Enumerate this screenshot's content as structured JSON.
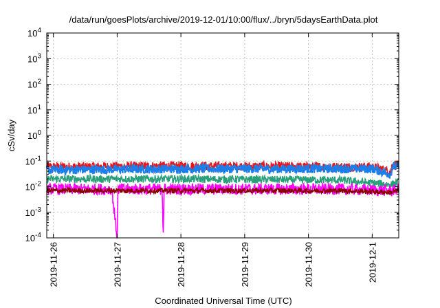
{
  "chart_data": {
    "type": "line",
    "title": "/data/run/goesPlots/archive/2019-12-01/10:00/flux/../bryn/5daysEarthData.plot",
    "xlabel": "Coordinated Universal Time (UTC)",
    "ylabel": "cSv/day",
    "y_scale": "log",
    "ylim": [
      0.0001,
      10000
    ],
    "xlim": [
      "2019-11-25 21:30",
      "2019-12-01 10:00"
    ],
    "y_ticks": [
      {
        "value": 0.0001,
        "base": "10",
        "exp": "-4"
      },
      {
        "value": 0.001,
        "base": "10",
        "exp": "-3"
      },
      {
        "value": 0.01,
        "base": "10",
        "exp": "-2"
      },
      {
        "value": 0.1,
        "base": "10",
        "exp": "-1"
      },
      {
        "value": 1,
        "base": "10",
        "exp": "0"
      },
      {
        "value": 10,
        "base": "10",
        "exp": "1"
      },
      {
        "value": 100,
        "base": "10",
        "exp": "2"
      },
      {
        "value": 1000,
        "base": "10",
        "exp": "3"
      },
      {
        "value": 10000,
        "base": "10",
        "exp": "4"
      }
    ],
    "x_ticks": [
      "2019-11-26",
      "2019-11-27",
      "2019-11-28",
      "2019-11-29",
      "2019-11-30",
      "2019-12-1"
    ],
    "grid": true,
    "legend": "none",
    "series": [
      {
        "color": "#e8161b",
        "typical": 0.06,
        "spread": 0.0,
        "points": [
          [
            "2019-11-25 21:30",
            0.06
          ],
          [
            "2019-11-28 00:00",
            0.065
          ],
          [
            "2019-11-30 12:00",
            0.06
          ],
          [
            "2019-12-01 00:00",
            0.06
          ],
          [
            "2019-12-01 07:00",
            0.04
          ],
          [
            "2019-12-01 07:30",
            0.07
          ],
          [
            "2019-12-01 10:00",
            0.07
          ]
        ]
      },
      {
        "color": "#1e7ee8",
        "typical": 0.05,
        "spread": 0.0,
        "points": [
          [
            "2019-11-25 21:30",
            0.045
          ],
          [
            "2019-11-28 00:00",
            0.05
          ],
          [
            "2019-11-30 12:00",
            0.05
          ],
          [
            "2019-12-01 00:00",
            0.05
          ],
          [
            "2019-12-01 07:00",
            0.03
          ],
          [
            "2019-12-01 07:30",
            0.06
          ],
          [
            "2019-12-01 10:00",
            0.06
          ]
        ]
      },
      {
        "color": "#2aa07a",
        "typical": 0.02,
        "spread": 0.0,
        "points": [
          [
            "2019-11-25 21:30",
            0.02
          ],
          [
            "2019-11-28 00:00",
            0.02
          ],
          [
            "2019-11-30 12:00",
            0.018
          ],
          [
            "2019-12-01 07:00",
            0.012
          ],
          [
            "2019-12-01 10:00",
            0.015
          ]
        ]
      },
      {
        "color": "#ff00ff",
        "typical": 0.008,
        "spread": 0.0,
        "points": [
          [
            "2019-11-25 21:30",
            0.008
          ],
          [
            "2019-11-26 22:00",
            0.008
          ],
          [
            "2019-11-27 00:00",
            0.0001
          ],
          [
            "2019-11-27 00:20",
            0.008
          ],
          [
            "2019-11-27 17:00",
            0.008
          ],
          [
            "2019-11-27 17:20",
            0.0001
          ],
          [
            "2019-11-27 17:40",
            0.008
          ],
          [
            "2019-11-30 12:00",
            0.008
          ],
          [
            "2019-12-01 07:00",
            0.007
          ],
          [
            "2019-12-01 10:00",
            0.008
          ]
        ]
      },
      {
        "color": "#8b0000",
        "typical": 0.007,
        "spread": 0.0,
        "points": [
          [
            "2019-11-25 21:30",
            0.007
          ],
          [
            "2019-11-30 12:00",
            0.007
          ],
          [
            "2019-12-01 07:00",
            0.006
          ],
          [
            "2019-12-01 10:00",
            0.007
          ]
        ]
      }
    ]
  }
}
